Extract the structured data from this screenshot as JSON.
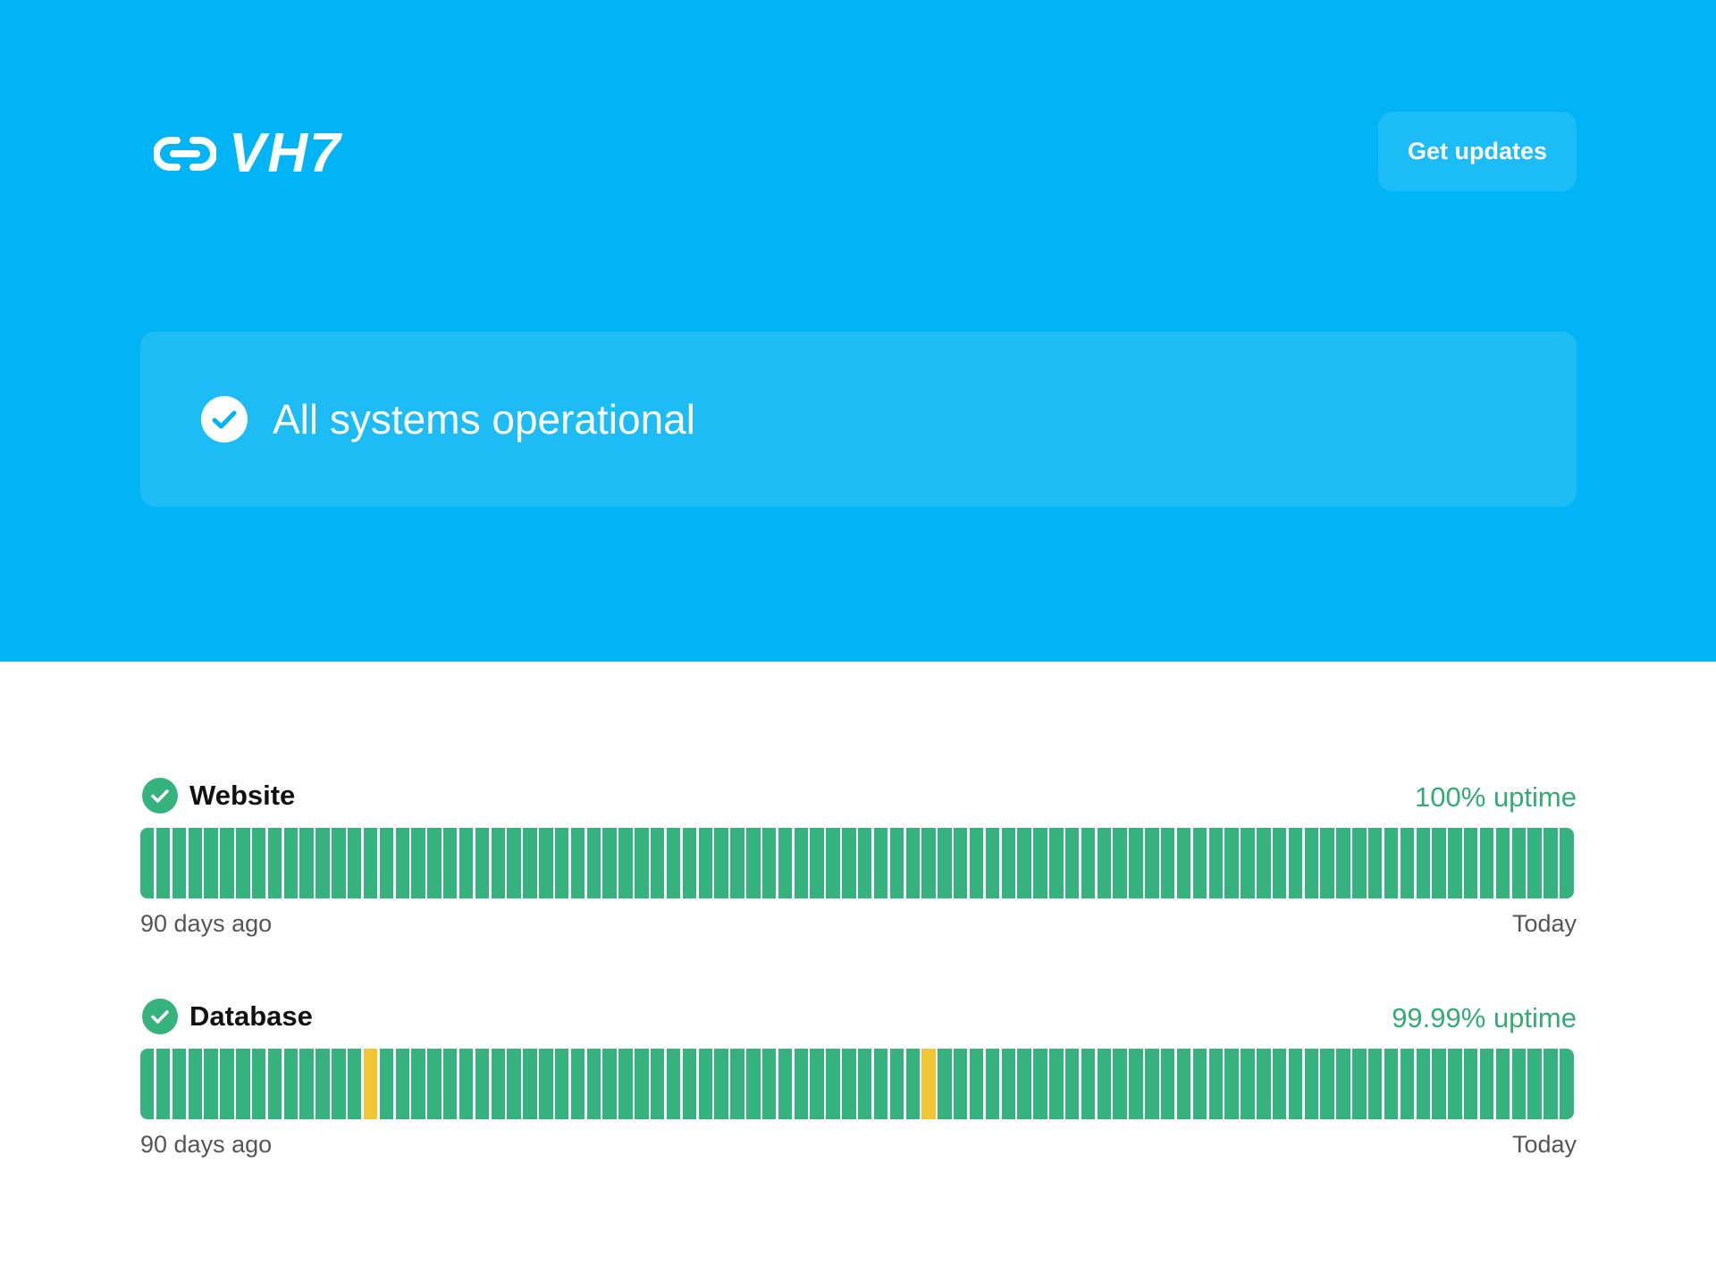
{
  "brand": {
    "logo_text": "VH7",
    "logo_icon": "link-icon",
    "accent_color": "#01b4f6"
  },
  "header": {
    "get_updates_label": "Get updates"
  },
  "status": {
    "icon": "check-circle-icon",
    "message": "All systems operational"
  },
  "services": [
    {
      "name": "Website",
      "icon": "check-circle-icon",
      "uptime": "100% uptime",
      "range_start": "90 days ago",
      "range_end": "Today",
      "days": 90,
      "degraded_days": []
    },
    {
      "name": "Database",
      "icon": "check-circle-icon",
      "uptime": "99.99% uptime",
      "range_start": "90 days ago",
      "range_end": "Today",
      "days": 90,
      "degraded_days": [
        14,
        49
      ]
    }
  ],
  "colors": {
    "operational": "#36b27f",
    "degraded": "#f0c635",
    "uptime_text": "#34ab76"
  }
}
